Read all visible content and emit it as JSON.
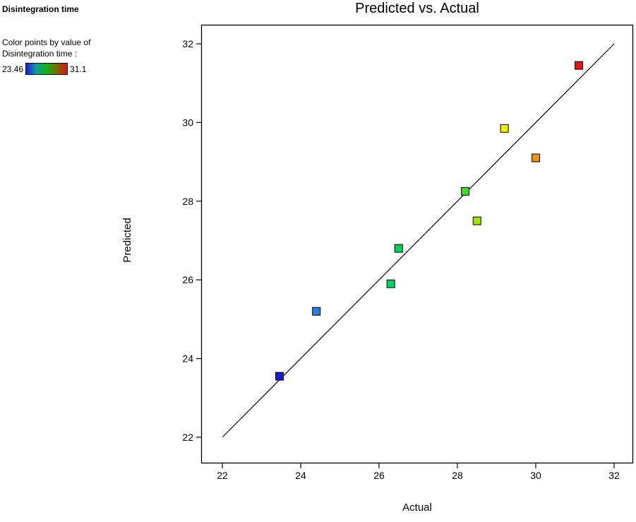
{
  "legend": {
    "factor_name": "Disintegration time",
    "caption_line1": "Color points by value of",
    "caption_line2": "Disintegration time :",
    "min_label": "23.46",
    "max_label": "31.1",
    "gradient_stops": [
      "#1c1cdd",
      "#0d9e9e",
      "#12b212",
      "#7a6a00",
      "#e01010"
    ]
  },
  "chart_data": {
    "type": "scatter",
    "title": "Predicted vs. Actual",
    "xlabel": "Actual",
    "ylabel": "Predicted",
    "xlim": [
      22,
      32
    ],
    "ylim": [
      22,
      32
    ],
    "xticks": [
      22,
      24,
      26,
      28,
      30,
      32
    ],
    "yticks": [
      22,
      24,
      26,
      28,
      30,
      32
    ],
    "grid": false,
    "legend_position": "top-left-outside",
    "reference_line": {
      "from": [
        22,
        22
      ],
      "to": [
        32,
        32
      ]
    },
    "points": [
      {
        "actual": 23.46,
        "predicted": 23.55,
        "color": "#1a1ad2"
      },
      {
        "actual": 24.4,
        "predicted": 25.2,
        "color": "#2e7de2"
      },
      {
        "actual": 26.3,
        "predicted": 25.9,
        "color": "#00d26a"
      },
      {
        "actual": 26.5,
        "predicted": 26.8,
        "color": "#00d25a"
      },
      {
        "actual": 28.2,
        "predicted": 28.25,
        "color": "#3fd926"
      },
      {
        "actual": 28.5,
        "predicted": 27.5,
        "color": "#9fe400"
      },
      {
        "actual": 29.2,
        "predicted": 29.85,
        "color": "#f0ee00"
      },
      {
        "actual": 30.0,
        "predicted": 29.1,
        "color": "#f29100"
      },
      {
        "actual": 31.1,
        "predicted": 31.45,
        "color": "#e81212"
      }
    ]
  }
}
